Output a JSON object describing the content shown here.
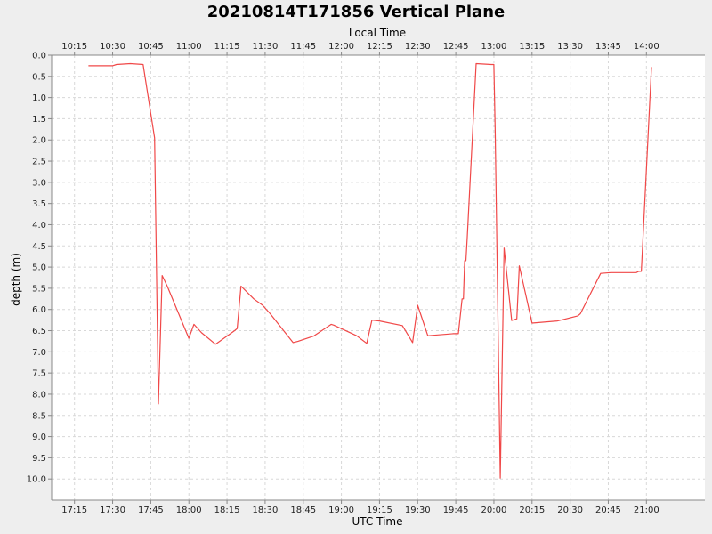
{
  "chart_data": {
    "type": "line",
    "title": "20210814T171856 Vertical Plane",
    "xlabel": "UTC Time",
    "x2label": "Local Time",
    "ylabel": "depth (m)",
    "ylim": [
      0.0,
      10.5
    ],
    "y_inverted": true,
    "y_ticks": [
      "0.0",
      "0.5",
      "1.0",
      "1.5",
      "2.0",
      "2.5",
      "3.0",
      "3.5",
      "4.0",
      "4.5",
      "5.0",
      "5.5",
      "6.0",
      "6.5",
      "7.0",
      "7.5",
      "8.0",
      "8.5",
      "9.0",
      "9.5",
      "10.0"
    ],
    "xlim": [
      "17:06",
      "21:23"
    ],
    "x_ticks_utc": [
      "17:15",
      "17:30",
      "17:45",
      "18:00",
      "18:15",
      "18:30",
      "18:45",
      "19:00",
      "19:15",
      "19:30",
      "19:45",
      "20:00",
      "20:15",
      "20:30",
      "20:45",
      "21:00"
    ],
    "x_ticks_local": [
      "10:15",
      "10:30",
      "10:45",
      "11:00",
      "11:15",
      "11:30",
      "11:45",
      "12:00",
      "12:15",
      "12:30",
      "12:45",
      "13:00",
      "13:15",
      "13:30",
      "13:45",
      "14:00"
    ],
    "grid": true,
    "line_color": "#f04848",
    "series": [
      {
        "x": [
          "17:20:30",
          "17:30:00",
          "17:31:30",
          "17:37:00",
          "17:42:00",
          "17:46:30",
          "17:48:00",
          "17:49:30",
          "17:51:30",
          "18:00:00",
          "18:02:00",
          "18:05:00",
          "18:10:30",
          "18:18:00",
          "18:19:00",
          "18:20:30",
          "18:25:30",
          "18:29:00",
          "18:32:00",
          "18:41:00",
          "18:43:00",
          "18:49:00",
          "18:56:00",
          "18:57:00",
          "19:06:00",
          "19:10:00",
          "19:12:00",
          "19:15:00",
          "19:24:00",
          "19:28:00",
          "19:30:00",
          "19:34:00",
          "19:44:00",
          "19:46:00",
          "19:47:30",
          "19:48:00",
          "19:48:30",
          "19:49:00",
          "19:49:30",
          "19:53:00",
          "19:59:00",
          "20:00:00",
          "20:00:30",
          "20:02:30",
          "20:04:00",
          "20:07:00",
          "20:09:00",
          "20:10:00",
          "20:15:00",
          "20:25:00",
          "20:33:00",
          "20:34:00",
          "20:42:00",
          "20:46:00",
          "20:56:00",
          "20:57:00",
          "20:58:00",
          "21:02:00"
        ],
        "values": [
          0.25,
          0.25,
          0.22,
          0.2,
          0.22,
          1.95,
          8.23,
          5.2,
          5.45,
          6.68,
          6.35,
          6.55,
          6.82,
          6.5,
          6.45,
          5.45,
          5.75,
          5.9,
          6.1,
          6.78,
          6.75,
          6.63,
          6.35,
          6.37,
          6.62,
          6.8,
          6.25,
          6.27,
          6.38,
          6.78,
          5.9,
          6.62,
          6.57,
          6.57,
          5.75,
          5.75,
          4.85,
          4.85,
          4.3,
          0.2,
          0.22,
          0.22,
          1.8,
          9.98,
          4.55,
          6.26,
          6.22,
          4.97,
          6.32,
          6.27,
          6.15,
          6.1,
          5.15,
          5.13,
          5.13,
          5.1,
          5.1,
          0.28
        ]
      }
    ]
  }
}
